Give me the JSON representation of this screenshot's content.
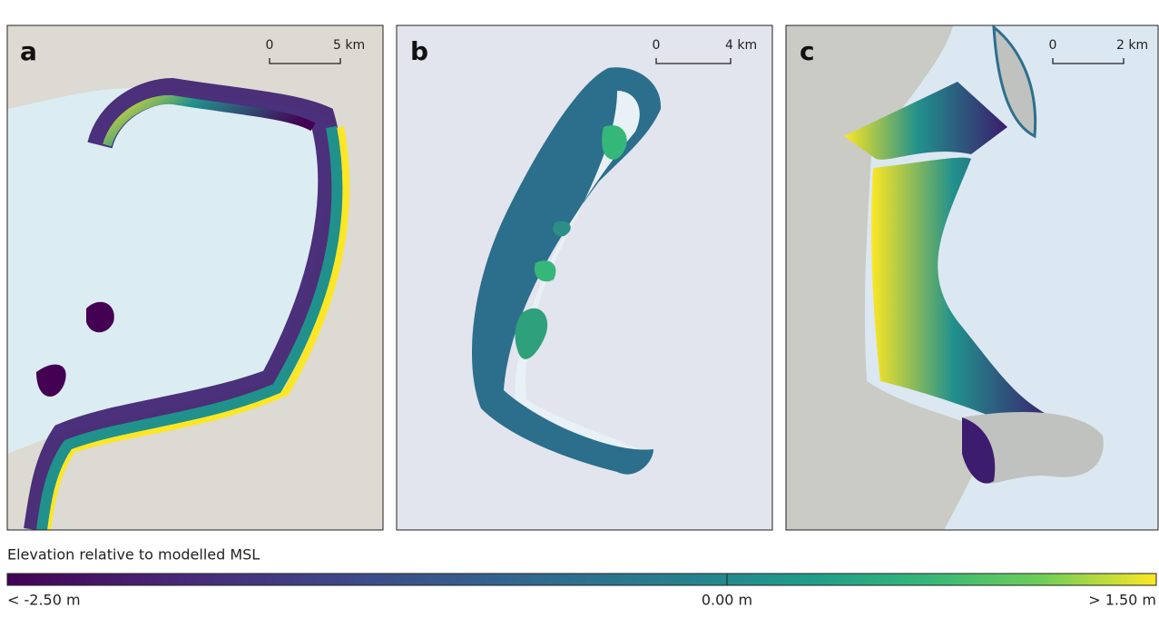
{
  "panels": [
    {
      "label": "a",
      "scale": {
        "start": "0",
        "end": "5 km"
      }
    },
    {
      "label": "b",
      "scale": {
        "start": "0",
        "end": "4 km"
      }
    },
    {
      "label": "c",
      "scale": {
        "start": "0",
        "end": "2 km"
      }
    }
  ],
  "legend": {
    "title": "Elevation relative to modelled MSL",
    "labels": [
      "< -2.50 m",
      "0.00 m",
      "> 1.50 m"
    ]
  }
}
